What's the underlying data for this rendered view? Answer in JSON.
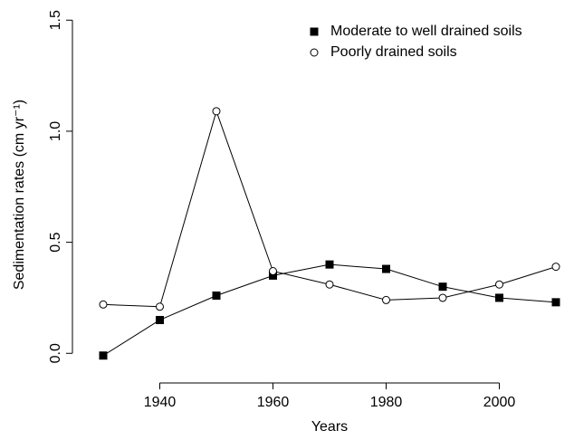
{
  "chart_data": {
    "type": "line",
    "x_label": "Years",
    "y_label": "Sedimentation rates (cm yr⁻¹)",
    "x": [
      1930,
      1940,
      1950,
      1960,
      1970,
      1980,
      1990,
      2000,
      2010
    ],
    "series": [
      {
        "name": "Moderate to well drained soils",
        "color": "#000000",
        "marker": "filled-square",
        "values": [
          -0.01,
          0.15,
          0.26,
          0.35,
          0.4,
          0.38,
          0.3,
          0.25,
          0.23
        ]
      },
      {
        "name": "Poorly drained soils",
        "color": "#000000",
        "marker": "open-circle",
        "values": [
          0.22,
          0.21,
          1.09,
          0.37,
          0.31,
          0.24,
          0.25,
          0.31,
          0.39
        ]
      }
    ],
    "xlim": [
      1926.8,
      2013.2
    ],
    "xticks": [
      1940,
      1960,
      1980,
      2000
    ],
    "ylim": [
      -0.06,
      1.55
    ],
    "yticks": [
      {
        "value": 0,
        "label": "0.0"
      },
      {
        "value": 0.5,
        "label": "0.5"
      },
      {
        "value": 1,
        "label": "1.0"
      },
      {
        "value": 1.5,
        "label": "1.5"
      }
    ],
    "legend": "top-right",
    "grid": false
  }
}
